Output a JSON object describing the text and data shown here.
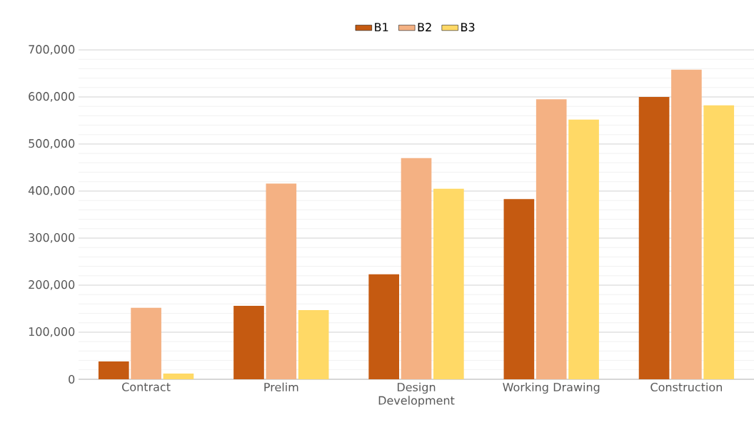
{
  "chart_data": {
    "type": "bar",
    "categories": [
      "Contract",
      "Prelim",
      "Design Development",
      "Working Drawing",
      "Construction"
    ],
    "series": [
      {
        "name": "B1",
        "color": "#c55a11",
        "values": [
          38000,
          156000,
          223000,
          383000,
          600000
        ]
      },
      {
        "name": "B2",
        "color": "#f4b183",
        "values": [
          152000,
          416000,
          470000,
          595000,
          658000
        ]
      },
      {
        "name": "B3",
        "color": "#ffd966",
        "values": [
          12000,
          147000,
          405000,
          552000,
          582000
        ]
      }
    ],
    "ylim": [
      0,
      700000
    ],
    "yticks": [
      0,
      {
        "value": 100000,
        "label": "100,000"
      },
      {
        "value": 200000,
        "label": "200,000"
      },
      {
        "value": 300000,
        "label": "300,000"
      },
      {
        "value": 400000,
        "label": "400,000"
      },
      {
        "value": 500000,
        "label": "500,000"
      },
      {
        "value": 600000,
        "label": "600,000"
      },
      {
        "value": 700000,
        "label": "700,000"
      }
    ],
    "grid": "y",
    "legend": "top"
  }
}
